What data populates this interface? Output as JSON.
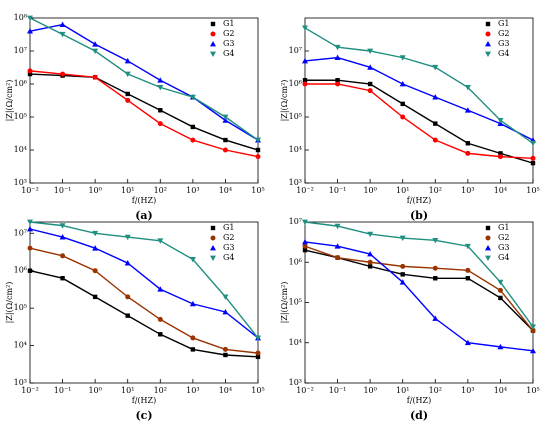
{
  "chart_data": [
    {
      "type": "line",
      "panel_label": "(a)",
      "xlabel": "f/(HZ)",
      "ylabel": "|Z|(Ω/cm²)",
      "xlog": true,
      "ylog": true,
      "legend": "upper right",
      "x": [
        0.01,
        0.1,
        1,
        10,
        100,
        1000,
        10000,
        100000
      ],
      "xlim": [
        0.01,
        100000
      ],
      "xticks": [
        {
          "value": 0.01,
          "label": "10⁻²"
        },
        {
          "value": 0.1,
          "label": "10⁻¹"
        },
        {
          "value": 1,
          "label": "10⁰"
        },
        {
          "value": 10,
          "label": "10¹"
        },
        {
          "value": 100,
          "label": "10²"
        },
        {
          "value": 1000,
          "label": "10³"
        },
        {
          "value": 10000,
          "label": "10⁴"
        },
        {
          "value": 100000,
          "label": "10⁵"
        }
      ],
      "ylim": [
        1000,
        100000000
      ],
      "yticks": [
        {
          "value": 1000,
          "label": "10³"
        },
        {
          "value": 10000,
          "label": "10⁴"
        },
        {
          "value": 100000,
          "label": "10⁵"
        },
        {
          "value": 1000000,
          "label": "10⁶"
        },
        {
          "value": 10000000,
          "label": "10⁷"
        },
        {
          "value": 100000000,
          "label": "10⁸"
        }
      ],
      "series": [
        {
          "name": "G1",
          "color": "#000000",
          "marker": "square",
          "values": [
            2000000.0,
            1800000.0,
            1600000.0,
            500000.0,
            160000.0,
            50000.0,
            20000.0,
            10000.0
          ]
        },
        {
          "name": "G2",
          "color": "#ff0000",
          "marker": "circle",
          "values": [
            2500000.0,
            2000000.0,
            1600000.0,
            320000.0,
            63000.0,
            20000.0,
            10000.0,
            6300.0
          ]
        },
        {
          "name": "G3",
          "color": "#0000ff",
          "marker": "triangle-up",
          "values": [
            40000000.0,
            63000000.0,
            16000000.0,
            5000000.0,
            1300000.0,
            400000.0,
            79000.0,
            20000.0
          ]
        },
        {
          "name": "G4",
          "color": "#1f8f80",
          "marker": "triangle-down",
          "values": [
            100000000.0,
            32000000.0,
            10000000.0,
            2000000.0,
            790000.0,
            400000.0,
            100000.0,
            20000.0
          ]
        }
      ]
    },
    {
      "type": "line",
      "panel_label": "(b)",
      "xlabel": "f/(HZ)",
      "ylabel": "|Z|(Ω/cm²)",
      "xlog": true,
      "ylog": true,
      "legend": "upper right",
      "x": [
        0.01,
        0.1,
        1,
        10,
        100,
        1000,
        10000,
        100000
      ],
      "xlim": [
        0.01,
        100000
      ],
      "xticks": [
        {
          "value": 0.01,
          "label": "10⁻²"
        },
        {
          "value": 0.1,
          "label": "10⁻¹"
        },
        {
          "value": 1,
          "label": "10⁰"
        },
        {
          "value": 10,
          "label": "10¹"
        },
        {
          "value": 100,
          "label": "10²"
        },
        {
          "value": 1000,
          "label": "10³"
        },
        {
          "value": 10000,
          "label": "10⁴"
        },
        {
          "value": 100000,
          "label": "10⁵"
        }
      ],
      "ylim": [
        1000,
        100000000
      ],
      "yticks": [
        {
          "value": 1000,
          "label": "10³"
        },
        {
          "value": 10000,
          "label": "10⁴"
        },
        {
          "value": 100000,
          "label": "10⁵"
        },
        {
          "value": 1000000,
          "label": "10⁶"
        },
        {
          "value": 10000000,
          "label": "10⁷"
        }
      ],
      "series": [
        {
          "name": "G1",
          "color": "#000000",
          "marker": "square",
          "values": [
            1300000.0,
            1300000.0,
            1000000.0,
            250000.0,
            63000.0,
            16000.0,
            7900.0,
            4000.0
          ]
        },
        {
          "name": "G2",
          "color": "#ff0000",
          "marker": "circle",
          "values": [
            1000000.0,
            1000000.0,
            630000.0,
            100000.0,
            20000.0,
            7900.0,
            6300.0,
            5600.0
          ]
        },
        {
          "name": "G3",
          "color": "#0000ff",
          "marker": "triangle-up",
          "values": [
            5000000.0,
            6300000.0,
            3200000.0,
            1000000.0,
            400000.0,
            160000.0,
            63000.0,
            20000.0
          ]
        },
        {
          "name": "G4",
          "color": "#1f8f80",
          "marker": "triangle-down",
          "values": [
            50000000.0,
            13000000.0,
            10000000.0,
            6300000.0,
            3200000.0,
            790000.0,
            79000.0,
            16000.0
          ]
        }
      ]
    },
    {
      "type": "line",
      "panel_label": "(c)",
      "xlabel": "f/(HZ)",
      "ylabel": "|Z|(Ω/cm²)",
      "xlog": true,
      "ylog": true,
      "legend": "upper right",
      "x": [
        0.01,
        0.1,
        1,
        10,
        100,
        1000,
        10000,
        100000
      ],
      "xlim": [
        0.01,
        100000
      ],
      "xticks": [
        {
          "value": 0.01,
          "label": "10⁻²"
        },
        {
          "value": 0.1,
          "label": "10⁻¹"
        },
        {
          "value": 1,
          "label": "10⁰"
        },
        {
          "value": 10,
          "label": "10¹"
        },
        {
          "value": 100,
          "label": "10²"
        },
        {
          "value": 1000,
          "label": "10³"
        },
        {
          "value": 10000,
          "label": "10⁴"
        },
        {
          "value": 100000,
          "label": "10⁵"
        }
      ],
      "ylim": [
        1000,
        20000000
      ],
      "yticks": [
        {
          "value": 1000,
          "label": "10³"
        },
        {
          "value": 10000,
          "label": "10⁴"
        },
        {
          "value": 100000,
          "label": "10⁵"
        },
        {
          "value": 1000000,
          "label": "10⁶"
        },
        {
          "value": 10000000,
          "label": "10⁷"
        }
      ],
      "series": [
        {
          "name": "G1",
          "color": "#000000",
          "marker": "square",
          "values": [
            1000000.0,
            630000.0,
            200000.0,
            63000.0,
            20000.0,
            7900.0,
            5600.0,
            5000.0
          ]
        },
        {
          "name": "G2",
          "color": "#993300",
          "marker": "circle",
          "values": [
            4000000.0,
            2500000.0,
            1000000.0,
            200000.0,
            50000.0,
            16000.0,
            7900.0,
            6300.0
          ]
        },
        {
          "name": "G3",
          "color": "#0000ff",
          "marker": "triangle-up",
          "values": [
            13000000.0,
            7900000.0,
            4000000.0,
            1600000.0,
            320000.0,
            130000.0,
            79000.0,
            16000.0
          ]
        },
        {
          "name": "G4",
          "color": "#1f8f80",
          "marker": "triangle-down",
          "values": [
            20000000.0,
            16000000.0,
            10000000.0,
            7900000.0,
            6300000.0,
            2000000.0,
            200000.0,
            16000.0
          ]
        }
      ]
    },
    {
      "type": "line",
      "panel_label": "(d)",
      "xlabel": "f/(HZ)",
      "ylabel": "|Z|(Ω/cm²)",
      "xlog": true,
      "ylog": true,
      "legend": "upper right",
      "x": [
        0.01,
        0.1,
        1,
        10,
        100,
        1000,
        10000,
        100000
      ],
      "xlim": [
        0.01,
        100000
      ],
      "xticks": [
        {
          "value": 0.01,
          "label": "10⁻²"
        },
        {
          "value": 0.1,
          "label": "10⁻¹"
        },
        {
          "value": 1,
          "label": "10⁰"
        },
        {
          "value": 10,
          "label": "10¹"
        },
        {
          "value": 100,
          "label": "10²"
        },
        {
          "value": 1000,
          "label": "10³"
        },
        {
          "value": 10000,
          "label": "10⁴"
        },
        {
          "value": 100000,
          "label": "10⁵"
        }
      ],
      "ylim": [
        1000,
        10000000
      ],
      "yticks": [
        {
          "value": 1000,
          "label": "10³"
        },
        {
          "value": 10000,
          "label": "10⁴"
        },
        {
          "value": 100000,
          "label": "10⁵"
        },
        {
          "value": 1000000,
          "label": "10⁶"
        },
        {
          "value": 10000000,
          "label": "10⁷"
        }
      ],
      "series": [
        {
          "name": "G1",
          "color": "#000000",
          "marker": "square",
          "values": [
            2000000.0,
            1300000.0,
            790000.0,
            500000.0,
            400000.0,
            400000.0,
            130000.0,
            20000.0
          ]
        },
        {
          "name": "G2",
          "color": "#993300",
          "marker": "circle",
          "values": [
            2500000.0,
            1300000.0,
            1000000.0,
            790000.0,
            710000.0,
            630000.0,
            200000.0,
            20000.0
          ]
        },
        {
          "name": "G3",
          "color": "#0000ff",
          "marker": "triangle-up",
          "values": [
            3200000.0,
            2500000.0,
            1600000.0,
            320000.0,
            40000.0,
            10000.0,
            7900.0,
            6300.0
          ]
        },
        {
          "name": "G4",
          "color": "#1f8f80",
          "marker": "triangle-down",
          "values": [
            10000000.0,
            7900000.0,
            5000000.0,
            4000000.0,
            3500000.0,
            2500000.0,
            320000.0,
            25000.0
          ]
        }
      ]
    }
  ]
}
